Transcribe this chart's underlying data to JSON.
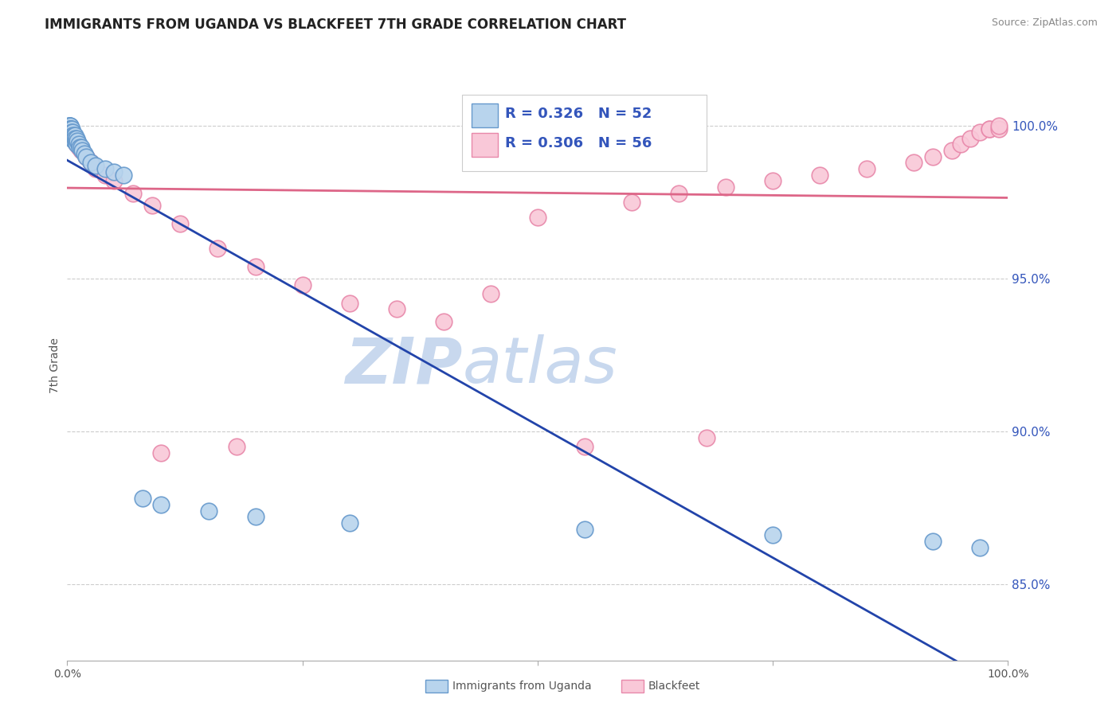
{
  "title": "IMMIGRANTS FROM UGANDA VS BLACKFEET 7TH GRADE CORRELATION CHART",
  "source": "Source: ZipAtlas.com",
  "ylabel": "7th Grade",
  "xmin": 0.0,
  "xmax": 1.0,
  "ymin": 0.825,
  "ymax": 1.018,
  "yticks": [
    0.85,
    0.9,
    0.95,
    1.0
  ],
  "ytick_labels": [
    "85.0%",
    "90.0%",
    "95.0%",
    "100.0%"
  ],
  "series1_label": "Immigrants from Uganda",
  "series1_fill_color": "#b8d4ed",
  "series1_edge_color": "#6699cc",
  "series1_R": "0.326",
  "series1_N": "52",
  "series2_label": "Blackfeet",
  "series2_fill_color": "#f9c8d8",
  "series2_edge_color": "#e888aa",
  "series2_R": "0.306",
  "series2_N": "56",
  "legend_text_color": "#3355bb",
  "trendline1_color": "#2244aa",
  "trendline2_color": "#dd6688",
  "grid_color": "#cccccc",
  "background_color": "#ffffff",
  "watermark_zip_color": "#c8d8ee",
  "watermark_atlas_color": "#c8d8ee",
  "title_color": "#222222",
  "source_color": "#888888",
  "ylabel_color": "#555555",
  "axis_color": "#aaaaaa",
  "tick_label_color": "#3355bb",
  "bottom_tick_color": "#555555",
  "series1_x": [
    0.002,
    0.002,
    0.002,
    0.002,
    0.003,
    0.003,
    0.003,
    0.003,
    0.003,
    0.003,
    0.003,
    0.003,
    0.004,
    0.004,
    0.004,
    0.004,
    0.004,
    0.005,
    0.005,
    0.005,
    0.005,
    0.006,
    0.006,
    0.007,
    0.007,
    0.007,
    0.008,
    0.008,
    0.009,
    0.01,
    0.01,
    0.011,
    0.012,
    0.013,
    0.015,
    0.016,
    0.018,
    0.02,
    0.025,
    0.03,
    0.04,
    0.05,
    0.06,
    0.08,
    0.1,
    0.15,
    0.2,
    0.3,
    0.55,
    0.75,
    0.92,
    0.97
  ],
  "series1_y": [
    1.0,
    1.0,
    1.0,
    0.999,
    1.0,
    1.0,
    0.999,
    0.999,
    0.999,
    0.998,
    0.998,
    0.997,
    0.999,
    0.999,
    0.998,
    0.998,
    0.997,
    0.999,
    0.998,
    0.997,
    0.996,
    0.998,
    0.997,
    0.997,
    0.996,
    0.995,
    0.997,
    0.996,
    0.995,
    0.996,
    0.994,
    0.995,
    0.994,
    0.993,
    0.993,
    0.992,
    0.991,
    0.99,
    0.988,
    0.987,
    0.986,
    0.985,
    0.984,
    0.878,
    0.876,
    0.874,
    0.872,
    0.87,
    0.868,
    0.866,
    0.864,
    0.862
  ],
  "series2_x": [
    0.001,
    0.001,
    0.002,
    0.002,
    0.003,
    0.003,
    0.003,
    0.003,
    0.004,
    0.004,
    0.005,
    0.005,
    0.006,
    0.006,
    0.007,
    0.008,
    0.009,
    0.01,
    0.012,
    0.015,
    0.02,
    0.025,
    0.03,
    0.04,
    0.05,
    0.07,
    0.09,
    0.12,
    0.16,
    0.2,
    0.25,
    0.3,
    0.4,
    0.5,
    0.6,
    0.65,
    0.7,
    0.75,
    0.8,
    0.85,
    0.9,
    0.92,
    0.94,
    0.95,
    0.96,
    0.97,
    0.98,
    0.98,
    0.99,
    0.99,
    0.1,
    0.18,
    0.35,
    0.45,
    0.55,
    0.68
  ],
  "series2_y": [
    0.999,
    0.999,
    0.999,
    0.998,
    0.999,
    0.999,
    0.998,
    0.997,
    0.999,
    0.998,
    0.998,
    0.997,
    0.997,
    0.996,
    0.996,
    0.995,
    0.995,
    0.994,
    0.993,
    0.992,
    0.99,
    0.988,
    0.986,
    0.984,
    0.982,
    0.978,
    0.974,
    0.968,
    0.96,
    0.954,
    0.948,
    0.942,
    0.936,
    0.97,
    0.975,
    0.978,
    0.98,
    0.982,
    0.984,
    0.986,
    0.988,
    0.99,
    0.992,
    0.994,
    0.996,
    0.998,
    0.999,
    0.999,
    0.999,
    1.0,
    0.893,
    0.895,
    0.94,
    0.945,
    0.895,
    0.898
  ]
}
